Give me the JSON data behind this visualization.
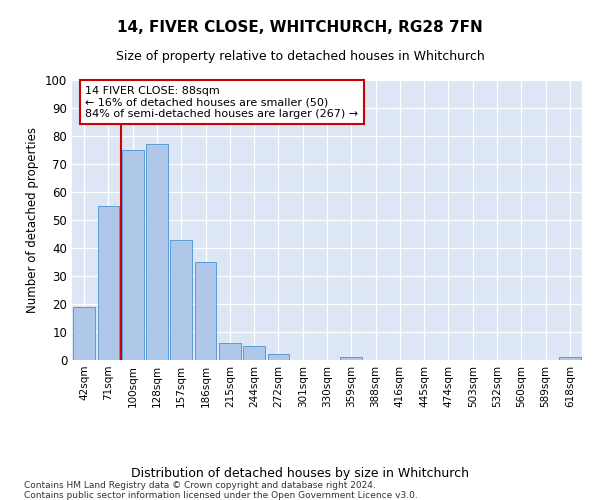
{
  "title1": "14, FIVER CLOSE, WHITCHURCH, RG28 7FN",
  "title2": "Size of property relative to detached houses in Whitchurch",
  "xlabel": "Distribution of detached houses by size in Whitchurch",
  "ylabel": "Number of detached properties",
  "categories": [
    "42sqm",
    "71sqm",
    "100sqm",
    "128sqm",
    "157sqm",
    "186sqm",
    "215sqm",
    "244sqm",
    "272sqm",
    "301sqm",
    "330sqm",
    "359sqm",
    "388sqm",
    "416sqm",
    "445sqm",
    "474sqm",
    "503sqm",
    "532sqm",
    "560sqm",
    "589sqm",
    "618sqm"
  ],
  "values": [
    19,
    55,
    75,
    77,
    43,
    35,
    6,
    5,
    2,
    0,
    0,
    1,
    0,
    0,
    0,
    0,
    0,
    0,
    0,
    0,
    1
  ],
  "bar_color": "#aec6e8",
  "bar_edge_color": "#5b9bd5",
  "property_line_x": 1.5,
  "property_line_color": "#cc0000",
  "annotation_text": "14 FIVER CLOSE: 88sqm\n← 16% of detached houses are smaller (50)\n84% of semi-detached houses are larger (267) →",
  "annotation_box_color": "#ffffff",
  "annotation_box_edge_color": "#cc0000",
  "ylim": [
    0,
    100
  ],
  "yticks": [
    0,
    10,
    20,
    30,
    40,
    50,
    60,
    70,
    80,
    90,
    100
  ],
  "background_color": "#dce6f5",
  "footer_line1": "Contains HM Land Registry data © Crown copyright and database right 2024.",
  "footer_line2": "Contains public sector information licensed under the Open Government Licence v3.0."
}
